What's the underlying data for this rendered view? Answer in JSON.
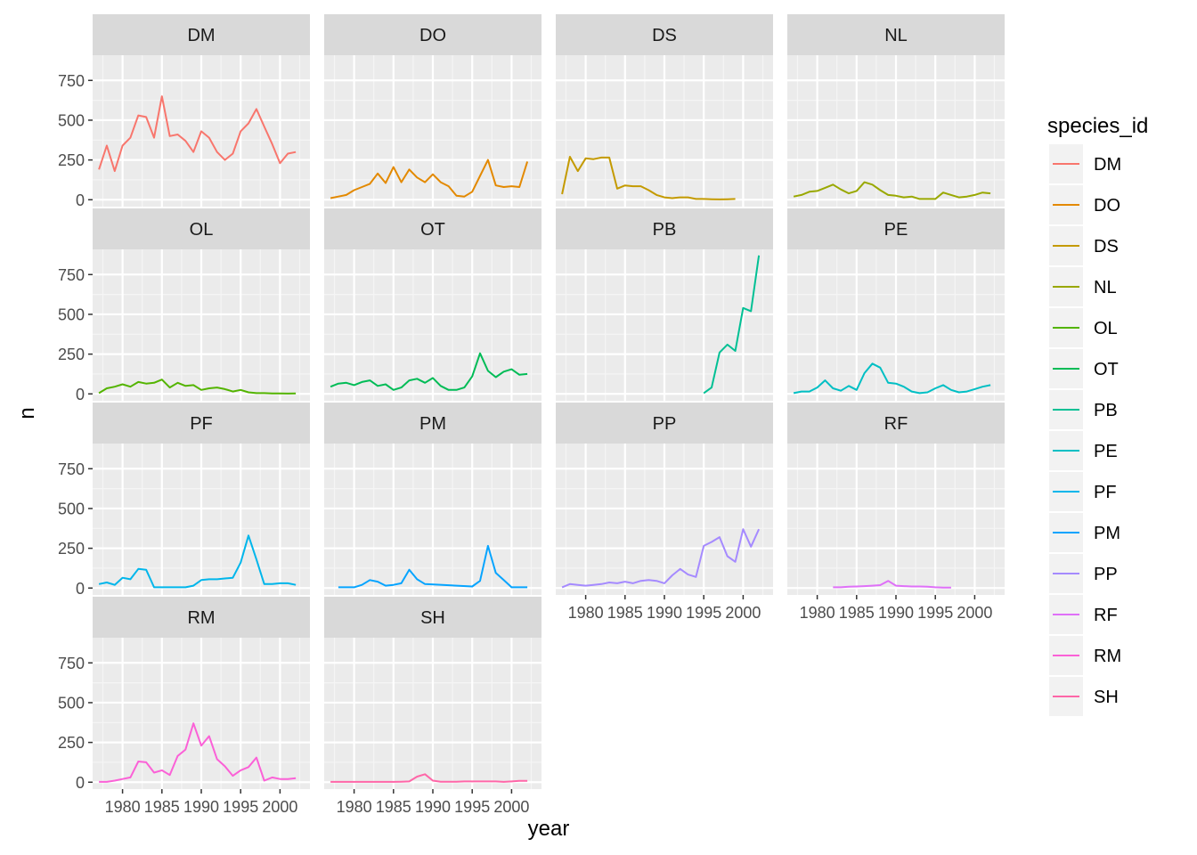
{
  "chart_data": {
    "type": "line",
    "facet_layout": "wrap-4-columns",
    "xlabel": "year",
    "ylabel": "n",
    "x_ticks": [
      1980,
      1985,
      1990,
      1995,
      2000
    ],
    "y_ticks": [
      0,
      250,
      500,
      750
    ],
    "xlim": [
      1976.2,
      2003.8
    ],
    "ylim": [
      -43.3,
      908.3
    ],
    "grid": true,
    "legend_title": "species_id",
    "legend_position": "right",
    "series": [
      {
        "name": "DM",
        "color": "#F8766D",
        "x": [
          1977,
          1978,
          1979,
          1980,
          1981,
          1982,
          1983,
          1984,
          1985,
          1986,
          1987,
          1988,
          1989,
          1990,
          1991,
          1992,
          1993,
          1994,
          1995,
          1996,
          1997,
          1998,
          1999,
          2000,
          2001,
          2002
        ],
        "y": [
          190,
          340,
          180,
          340,
          390,
          530,
          520,
          390,
          650,
          400,
          410,
          370,
          300,
          430,
          390,
          300,
          250,
          290,
          430,
          480,
          570,
          460,
          350,
          230,
          290,
          300
        ]
      },
      {
        "name": "DO",
        "color": "#E38900",
        "x": [
          1977,
          1978,
          1979,
          1980,
          1981,
          1982,
          1983,
          1984,
          1985,
          1986,
          1987,
          1988,
          1989,
          1990,
          1991,
          1992,
          1993,
          1994,
          1995,
          1996,
          1997,
          1998,
          1999,
          2000,
          2001,
          2002
        ],
        "y": [
          10,
          20,
          30,
          60,
          80,
          100,
          165,
          105,
          205,
          110,
          190,
          140,
          110,
          160,
          110,
          85,
          25,
          20,
          50,
          150,
          250,
          90,
          80,
          85,
          80,
          240
        ]
      },
      {
        "name": "DS",
        "color": "#C49A00",
        "x": [
          1977,
          1978,
          1979,
          1980,
          1981,
          1982,
          1983,
          1984,
          1985,
          1986,
          1987,
          1988,
          1989,
          1990,
          1991,
          1992,
          1993,
          1994,
          1995,
          1996,
          1997,
          1998,
          1999
        ],
        "y": [
          35,
          270,
          180,
          260,
          255,
          265,
          265,
          70,
          90,
          85,
          85,
          60,
          30,
          15,
          10,
          15,
          15,
          5,
          5,
          3,
          2,
          3,
          5
        ]
      },
      {
        "name": "NL",
        "color": "#99A800",
        "x": [
          1977,
          1978,
          1979,
          1980,
          1981,
          1982,
          1983,
          1984,
          1985,
          1986,
          1987,
          1988,
          1989,
          1990,
          1991,
          1992,
          1993,
          1994,
          1995,
          1996,
          1997,
          1998,
          1999,
          2000,
          2001,
          2002
        ],
        "y": [
          20,
          30,
          50,
          55,
          75,
          95,
          65,
          40,
          55,
          110,
          95,
          60,
          30,
          25,
          15,
          20,
          5,
          5,
          5,
          45,
          30,
          15,
          20,
          30,
          45,
          40
        ]
      },
      {
        "name": "OL",
        "color": "#53B400",
        "x": [
          1977,
          1978,
          1979,
          1980,
          1981,
          1982,
          1983,
          1984,
          1985,
          1986,
          1987,
          1988,
          1989,
          1990,
          1991,
          1992,
          1993,
          1994,
          1995,
          1996,
          1997,
          1998,
          1999,
          2000,
          2001,
          2002
        ],
        "y": [
          5,
          35,
          45,
          60,
          45,
          75,
          65,
          70,
          90,
          40,
          70,
          50,
          55,
          25,
          35,
          40,
          30,
          15,
          25,
          10,
          5,
          5,
          3,
          3,
          2,
          3
        ]
      },
      {
        "name": "OT",
        "color": "#00BC56",
        "x": [
          1977,
          1978,
          1979,
          1980,
          1981,
          1982,
          1983,
          1984,
          1985,
          1986,
          1987,
          1988,
          1989,
          1990,
          1991,
          1992,
          1993,
          1994,
          1995,
          1996,
          1997,
          1998,
          1999,
          2000,
          2001,
          2002
        ],
        "y": [
          45,
          65,
          70,
          55,
          75,
          85,
          50,
          60,
          25,
          40,
          85,
          95,
          70,
          100,
          50,
          25,
          25,
          40,
          110,
          255,
          145,
          105,
          140,
          155,
          120,
          125
        ]
      },
      {
        "name": "PB",
        "color": "#00C094",
        "x": [
          1995,
          1996,
          1997,
          1998,
          1999,
          2000,
          2001,
          2002
        ],
        "y": [
          5,
          40,
          260,
          310,
          270,
          540,
          520,
          870
        ]
      },
      {
        "name": "PE",
        "color": "#00BFC4",
        "x": [
          1977,
          1978,
          1979,
          1980,
          1981,
          1982,
          1983,
          1984,
          1985,
          1986,
          1987,
          1988,
          1989,
          1990,
          1991,
          1992,
          1993,
          1994,
          1995,
          1996,
          1997,
          1998,
          1999,
          2000,
          2001,
          2002
        ],
        "y": [
          5,
          15,
          15,
          40,
          85,
          35,
          20,
          50,
          25,
          130,
          190,
          165,
          70,
          65,
          45,
          15,
          5,
          10,
          35,
          55,
          25,
          10,
          15,
          30,
          45,
          55
        ]
      },
      {
        "name": "PF",
        "color": "#00B6EB",
        "x": [
          1977,
          1978,
          1979,
          1980,
          1981,
          1982,
          1983,
          1984,
          1985,
          1986,
          1987,
          1988,
          1989,
          1990,
          1991,
          1992,
          1993,
          1994,
          1995,
          1996,
          1997,
          1998,
          1999,
          2000,
          2001,
          2002
        ],
        "y": [
          25,
          35,
          20,
          65,
          55,
          120,
          115,
          5,
          5,
          5,
          5,
          5,
          15,
          50,
          55,
          55,
          60,
          65,
          160,
          330,
          180,
          25,
          25,
          30,
          30,
          20
        ]
      },
      {
        "name": "PM",
        "color": "#06A4FF",
        "x": [
          1978,
          1979,
          1980,
          1981,
          1982,
          1983,
          1984,
          1985,
          1986,
          1987,
          1988,
          1989,
          1995,
          1996,
          1997,
          1998,
          1999,
          2000,
          2001,
          2002
        ],
        "y": [
          5,
          5,
          5,
          20,
          50,
          40,
          15,
          20,
          30,
          115,
          55,
          25,
          10,
          45,
          265,
          95,
          50,
          5,
          5,
          5
        ]
      },
      {
        "name": "PP",
        "color": "#A58AFF",
        "x": [
          1977,
          1978,
          1979,
          1980,
          1981,
          1982,
          1983,
          1984,
          1985,
          1986,
          1987,
          1988,
          1989,
          1990,
          1991,
          1992,
          1993,
          1994,
          1995,
          1996,
          1997,
          1998,
          1999,
          2000,
          2001,
          2002
        ],
        "y": [
          5,
          25,
          20,
          15,
          20,
          25,
          35,
          30,
          40,
          30,
          45,
          50,
          45,
          30,
          80,
          120,
          85,
          70,
          265,
          290,
          320,
          200,
          165,
          370,
          260,
          370
        ]
      },
      {
        "name": "RF",
        "color": "#DF70F8",
        "x": [
          1982,
          1983,
          1984,
          1985,
          1986,
          1987,
          1988,
          1989,
          1990,
          1991,
          1992,
          1993,
          1994,
          1995,
          1996,
          1997
        ],
        "y": [
          5,
          5,
          8,
          10,
          12,
          15,
          18,
          45,
          15,
          12,
          10,
          10,
          8,
          5,
          3,
          3
        ]
      },
      {
        "name": "RM",
        "color": "#FB61D7",
        "x": [
          1977,
          1978,
          1979,
          1980,
          1981,
          1982,
          1983,
          1984,
          1985,
          1986,
          1987,
          1988,
          1989,
          1990,
          1991,
          1992,
          1993,
          1994,
          1995,
          1996,
          1997,
          1998,
          1999,
          2000,
          2001,
          2002
        ],
        "y": [
          2,
          2,
          10,
          20,
          30,
          130,
          125,
          60,
          75,
          45,
          165,
          205,
          370,
          230,
          290,
          145,
          100,
          40,
          75,
          95,
          155,
          10,
          30,
          20,
          20,
          25
        ]
      },
      {
        "name": "SH",
        "color": "#FF66A8",
        "x": [
          1977,
          1978,
          1979,
          1980,
          1981,
          1982,
          1983,
          1984,
          1985,
          1986,
          1987,
          1988,
          1989,
          1990,
          1991,
          1992,
          1993,
          1994,
          1995,
          1996,
          1997,
          1998,
          1999,
          2000,
          2001,
          2002
        ],
        "y": [
          2,
          2,
          2,
          2,
          2,
          2,
          2,
          2,
          2,
          3,
          5,
          35,
          50,
          10,
          3,
          3,
          3,
          5,
          5,
          5,
          5,
          5,
          2,
          5,
          8,
          8
        ]
      }
    ]
  }
}
